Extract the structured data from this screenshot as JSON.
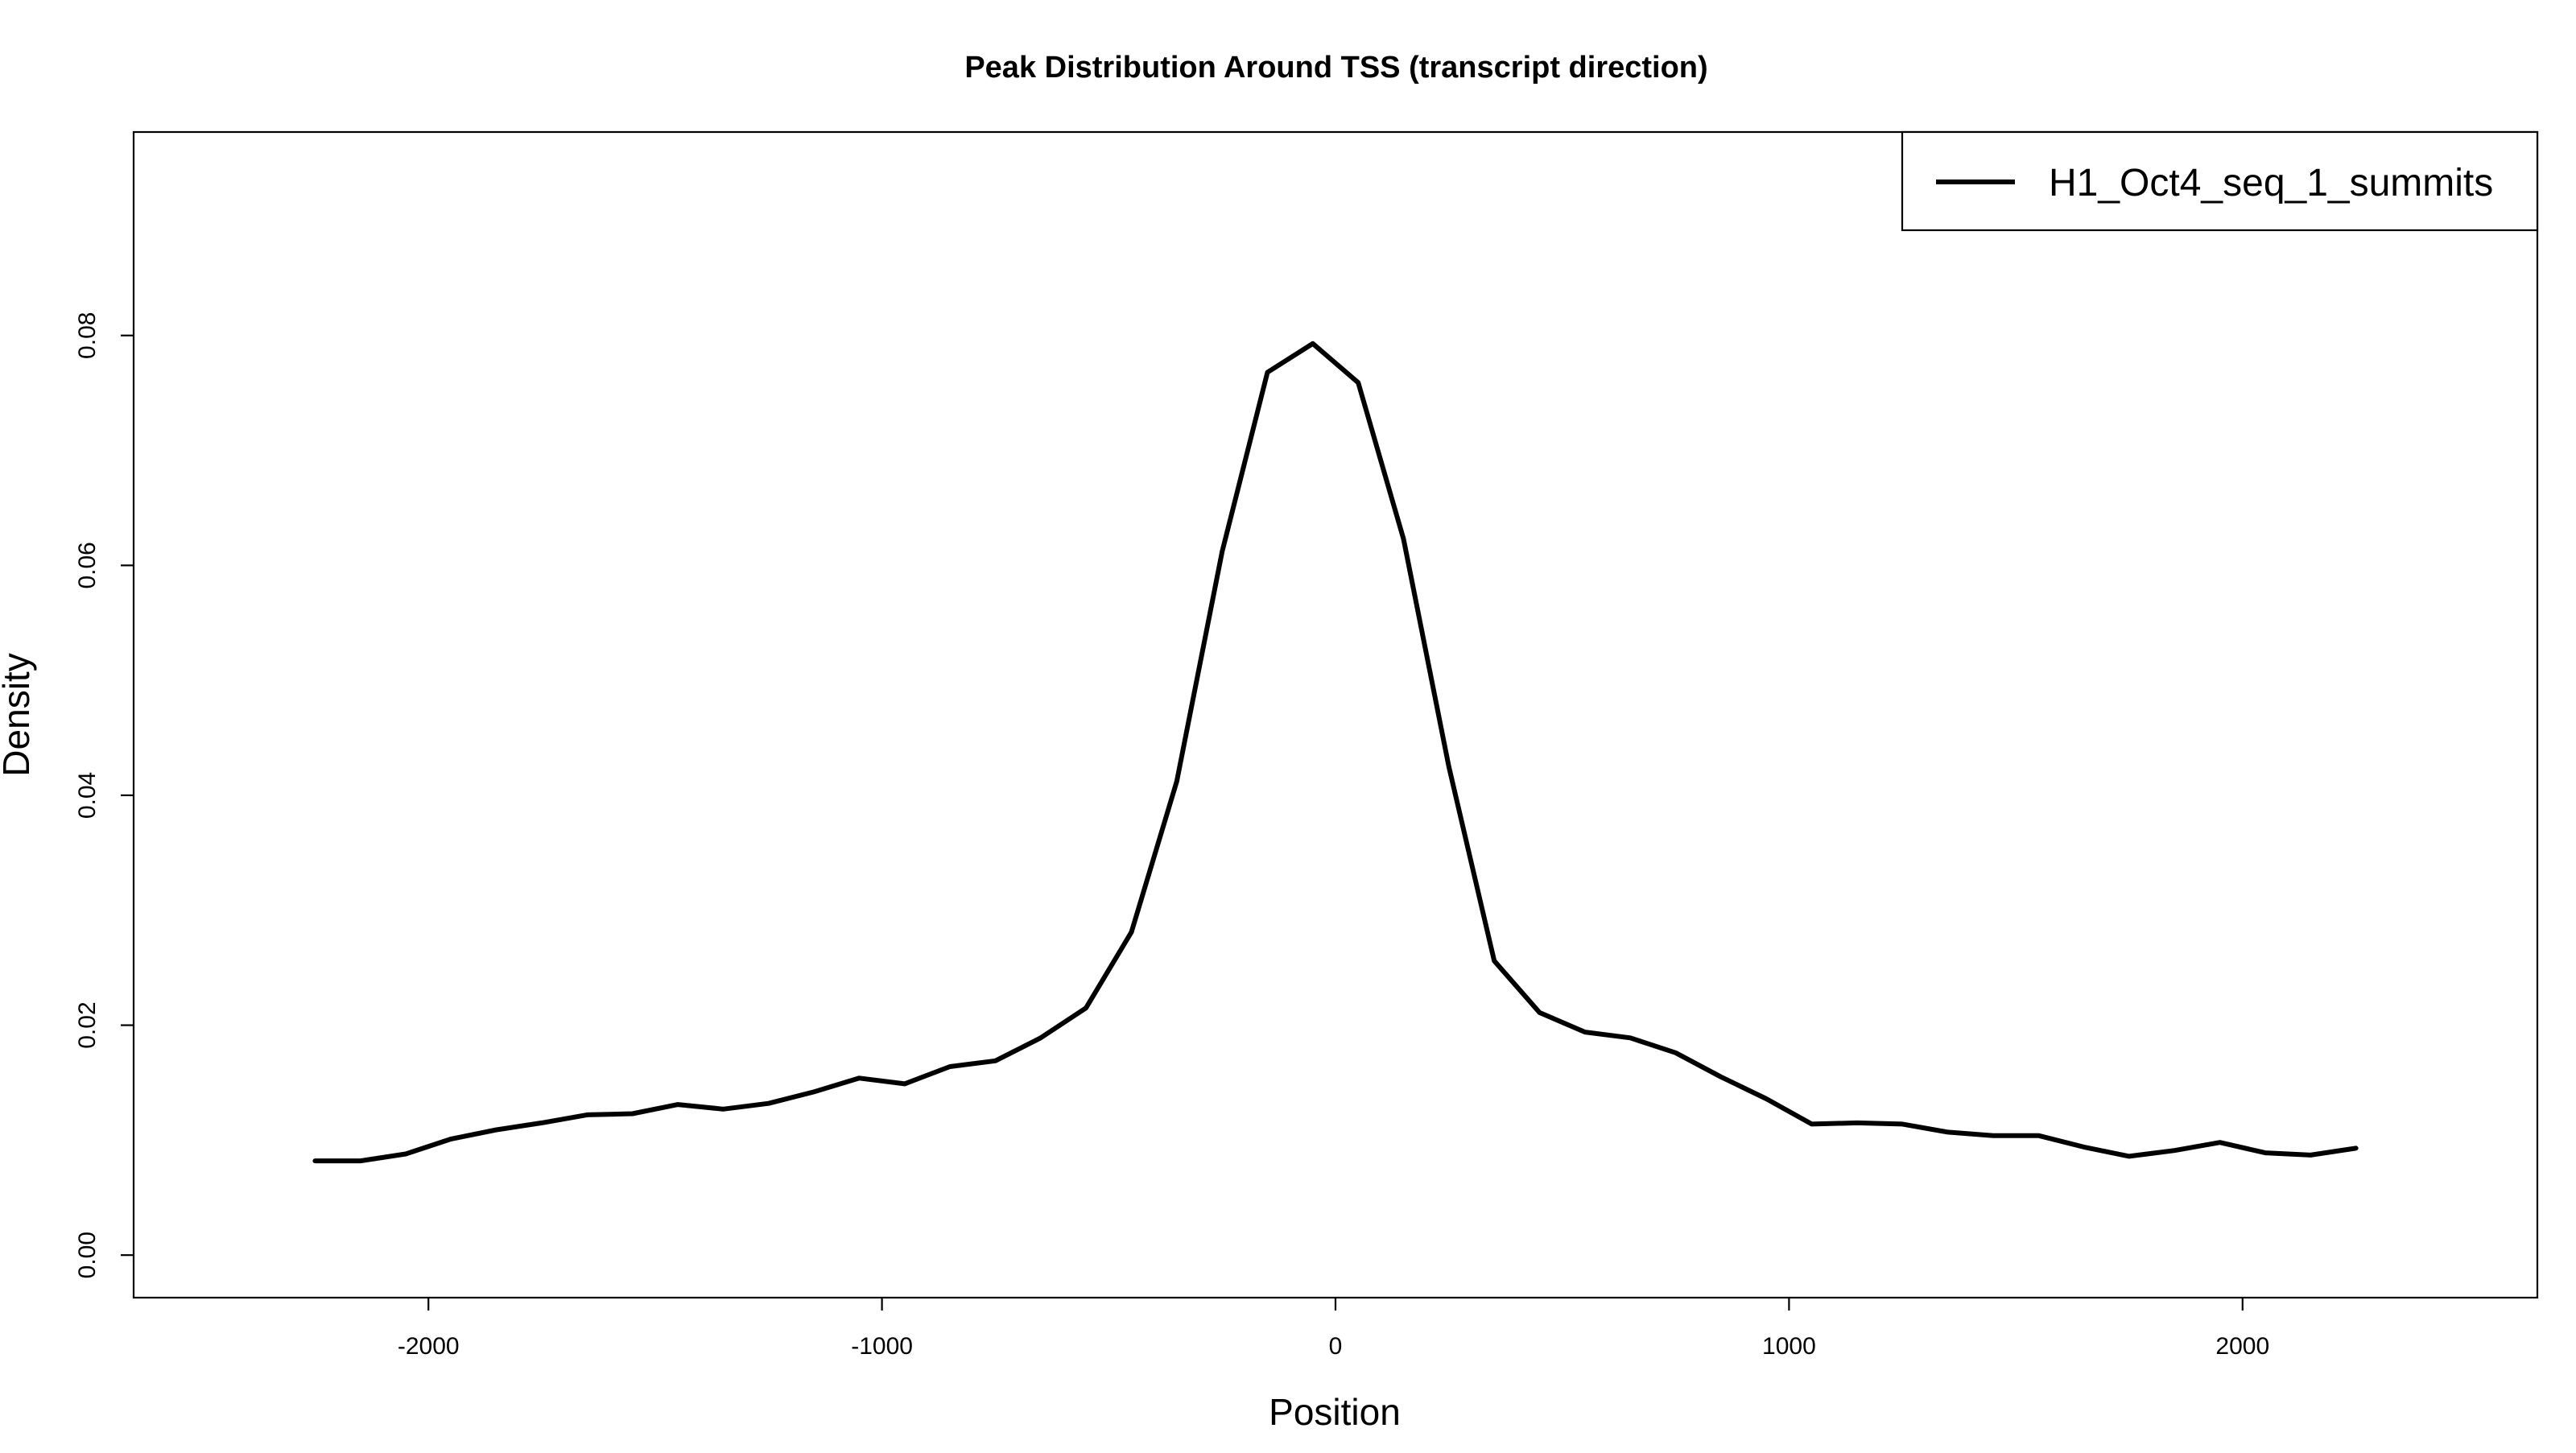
{
  "chart_data": {
    "type": "line",
    "title": "Peak Distribution Around TSS (transcript direction)",
    "xlabel": "Position",
    "ylabel": "Density",
    "xlim": [
      -2650,
      2650
    ],
    "ylim": [
      -0.0037,
      0.0977
    ],
    "x_ticks": [
      -2000,
      -1000,
      0,
      1000,
      2000
    ],
    "x_tick_labels": [
      "-2000",
      "-1000",
      "0",
      "1000",
      "2000"
    ],
    "y_ticks": [
      0.0,
      0.02,
      0.04,
      0.06,
      0.08
    ],
    "y_tick_labels": [
      "0.00",
      "0.02",
      "0.04",
      "0.06",
      "0.08"
    ],
    "grid": false,
    "legend_position": "top-right",
    "series": [
      {
        "name": "H1_Oct4_seq_1_summits",
        "color": "#000000",
        "x": [
          -2250,
          -2150,
          -2050,
          -1950,
          -1850,
          -1750,
          -1650,
          -1550,
          -1450,
          -1350,
          -1250,
          -1150,
          -1050,
          -950,
          -850,
          -750,
          -650,
          -550,
          -450,
          -350,
          -250,
          -150,
          -50,
          50,
          150,
          250,
          350,
          450,
          550,
          650,
          750,
          850,
          950,
          1050,
          1150,
          1250,
          1350,
          1450,
          1550,
          1650,
          1750,
          1850,
          1950,
          2050,
          2150,
          2250
        ],
        "y": [
          0.0082,
          0.0082,
          0.0088,
          0.0101,
          0.0109,
          0.0115,
          0.0122,
          0.0123,
          0.0131,
          0.0127,
          0.0132,
          0.0142,
          0.0154,
          0.0149,
          0.0164,
          0.0169,
          0.0189,
          0.0215,
          0.0281,
          0.0412,
          0.0612,
          0.0768,
          0.0793,
          0.0759,
          0.0623,
          0.0425,
          0.0256,
          0.0211,
          0.0194,
          0.0189,
          0.0176,
          0.0155,
          0.0136,
          0.0114,
          0.0115,
          0.0114,
          0.0107,
          0.0104,
          0.0104,
          0.0094,
          0.0086,
          0.0091,
          0.0098,
          0.0089,
          0.0087,
          0.0093
        ]
      }
    ]
  }
}
